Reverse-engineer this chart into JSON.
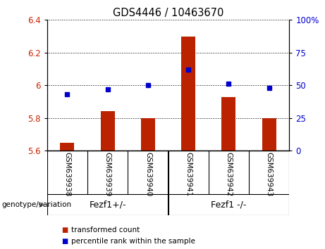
{
  "title": "GDS4446 / 10463670",
  "samples": [
    "GSM639938",
    "GSM639939",
    "GSM639940",
    "GSM639941",
    "GSM639942",
    "GSM639943"
  ],
  "bar_values": [
    5.65,
    5.84,
    5.8,
    6.3,
    5.93,
    5.8
  ],
  "percentile_values": [
    43,
    47,
    50,
    62,
    51,
    48
  ],
  "bar_bottom": 5.6,
  "ylim_left": [
    5.6,
    6.4
  ],
  "ylim_right": [
    0,
    100
  ],
  "yticks_left": [
    5.6,
    5.8,
    6.0,
    6.2,
    6.4
  ],
  "yticks_right": [
    0,
    25,
    50,
    75,
    100
  ],
  "ytick_labels_left": [
    "5.6",
    "5.8",
    "6",
    "6.2",
    "6.4"
  ],
  "ytick_labels_right": [
    "0",
    "25",
    "50",
    "75",
    "100%"
  ],
  "group_labels": [
    "Fezf1+/-",
    "Fezf1 -/-"
  ],
  "group_ranges": [
    [
      0,
      2
    ],
    [
      3,
      5
    ]
  ],
  "group_divider_after": 2,
  "bar_color": "#BB2200",
  "dot_color": "#0000CC",
  "background_color": "#ffffff",
  "genotype_label": "genotype/variation",
  "legend_items": [
    {
      "color": "#BB2200",
      "label": "transformed count"
    },
    {
      "color": "#0000CC",
      "label": "percentile rank within the sample"
    }
  ],
  "tick_label_color_left": "#CC2200",
  "tick_label_color_right": "#0000CC",
  "bar_width": 0.35,
  "xlabel_area_color": "#C8C8C8",
  "group_area_color": "#66EE66"
}
